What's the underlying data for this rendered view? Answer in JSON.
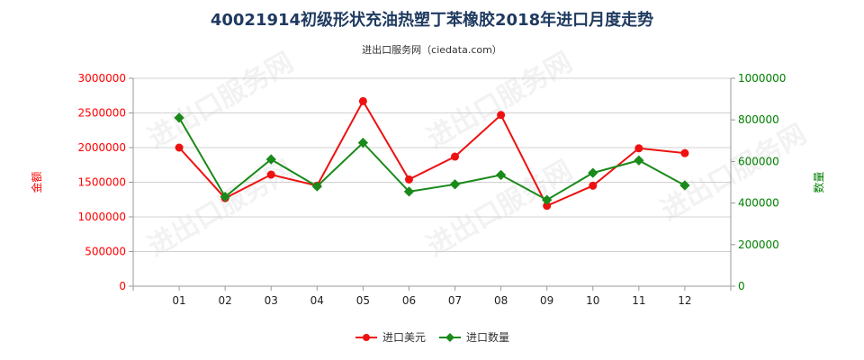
{
  "title": "40021914初级形状充油热塑丁苯橡胶2018年进口月度走势",
  "subtitle": "进出口服务网（ciedata.com）",
  "watermark": "进出口服务网",
  "colors": {
    "left_axis": "#ff0000",
    "right_axis": "#008000",
    "series_value": "#ee1111",
    "series_qty": "#1a8a1a",
    "grid": "#d0d0d0",
    "frame": "#999999"
  },
  "chart_data": {
    "type": "line",
    "categories": [
      "01",
      "02",
      "03",
      "04",
      "05",
      "06",
      "07",
      "08",
      "09",
      "10",
      "11",
      "12"
    ],
    "y_left": {
      "label": "金额",
      "min": 0,
      "max": 3000000,
      "ticks": [
        "0",
        "500000",
        "1000000",
        "1500000",
        "2000000",
        "2500000",
        "3000000"
      ]
    },
    "y_right": {
      "label": "数量",
      "min": 0,
      "max": 1000000,
      "ticks": [
        "0",
        "200000",
        "400000",
        "600000",
        "800000",
        "1000000"
      ]
    },
    "series": [
      {
        "name": "进口美元",
        "axis": "left",
        "values": [
          2000000,
          1270000,
          1610000,
          1450000,
          2670000,
          1540000,
          1870000,
          2470000,
          1160000,
          1450000,
          1990000,
          1920000
        ]
      },
      {
        "name": "进口数量",
        "axis": "right",
        "values": [
          810000,
          430000,
          610000,
          480000,
          690000,
          455000,
          490000,
          535000,
          415000,
          545000,
          605000,
          485000
        ]
      }
    ],
    "grid": true,
    "legend_position": "bottom"
  }
}
